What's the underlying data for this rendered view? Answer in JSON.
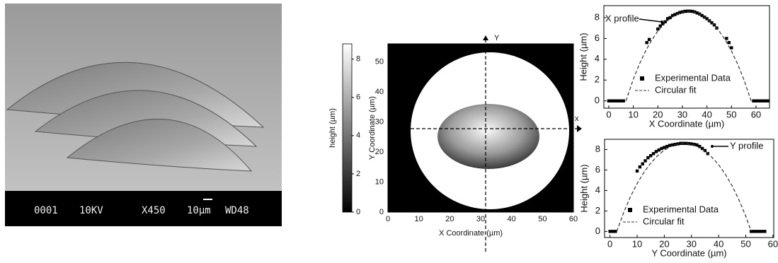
{
  "sem_image": {
    "labels": [
      "0001",
      "10KV",
      "X450",
      "10µm",
      "WD48"
    ]
  },
  "chart_data": [
    {
      "type": "image",
      "xlabel": "X Coordinate (µm)",
      "ylabel": "Y Coordinate (µm)",
      "xlim": [
        0,
        60
      ],
      "ylim": [
        0,
        56
      ],
      "xticks": [
        0,
        10,
        20,
        30,
        40,
        50,
        60
      ],
      "yticks": [
        0,
        10,
        20,
        30,
        40,
        50
      ],
      "axis_markers": [
        "Y",
        "x"
      ],
      "colorbar": {
        "label": "height (µm)",
        "lim": [
          0,
          8.8
        ],
        "ticks": [
          0,
          2,
          4,
          6,
          8
        ]
      }
    },
    {
      "type": "scatter",
      "annotation": "X profile",
      "xlabel": "X Coordinate (µm)",
      "ylabel": "Height (µm)",
      "xlim": [
        -2,
        65.5
      ],
      "ylim": [
        -0.7,
        9.15
      ],
      "xticks": [
        0,
        10,
        20,
        30,
        40,
        50,
        60
      ],
      "yticks": [
        0,
        2,
        4,
        6,
        8
      ],
      "legend": "right",
      "series": [
        {
          "name": "Experimental Data",
          "color": "#000000",
          "style": "markers",
          "x": [
            0,
            1,
            2,
            3,
            4,
            5,
            6,
            15.5,
            16.5,
            20,
            21,
            22,
            23,
            24,
            25,
            26,
            27,
            28,
            29,
            30,
            31,
            32,
            33,
            34,
            35,
            36,
            37,
            38,
            39,
            40,
            41,
            42,
            43,
            44,
            48,
            49,
            50,
            59,
            60,
            61,
            62,
            63,
            64,
            65
          ],
          "values": [
            0,
            0,
            0,
            0,
            0,
            0,
            0,
            5.6,
            5.9,
            6.9,
            7.2,
            7.4,
            7.6,
            7.9,
            8.0,
            8.2,
            8.3,
            8.4,
            8.5,
            8.55,
            8.6,
            8.62,
            8.62,
            8.6,
            8.55,
            8.45,
            8.35,
            8.2,
            8.05,
            7.9,
            7.7,
            7.5,
            7.3,
            7.0,
            6.0,
            5.6,
            5.1,
            0,
            0,
            0,
            0,
            0,
            0,
            0
          ]
        },
        {
          "name": "Circular fit",
          "color": "#333333",
          "style": "dashed",
          "x": [
            7,
            10,
            12.5,
            15,
            17.5,
            20,
            22.5,
            25,
            27.5,
            30,
            32.5,
            35,
            37.5,
            40,
            42.5,
            45,
            47.5,
            50,
            52.5,
            55,
            58
          ],
          "values": [
            0,
            2.08,
            3.55,
            4.79,
            5.84,
            6.7,
            7.4,
            7.93,
            8.3,
            8.53,
            8.6,
            8.53,
            8.3,
            7.93,
            7.4,
            6.7,
            5.84,
            4.79,
            3.55,
            2.08,
            0
          ]
        }
      ]
    },
    {
      "type": "scatter",
      "annotation": "Y profile",
      "xlabel": "Y Coordinate (µm)",
      "ylabel": "Height (µm)",
      "xlim": [
        -2,
        60.3
      ],
      "ylim": [
        -0.6,
        9.0
      ],
      "xticks": [
        0,
        10,
        20,
        30,
        40,
        50,
        60
      ],
      "yticks": [
        0,
        2,
        4,
        6,
        8
      ],
      "legend": "lower center",
      "series": [
        {
          "name": "Experimental Data",
          "color": "#000000",
          "style": "markers",
          "x": [
            0,
            1,
            2,
            10,
            11,
            12,
            13,
            14,
            15,
            16,
            17,
            18,
            19,
            20,
            21,
            22,
            23,
            24,
            25,
            26,
            27,
            28,
            29,
            30,
            31,
            32,
            33,
            34,
            35,
            36,
            52,
            53,
            54,
            55,
            56,
            57
          ],
          "values": [
            0,
            0,
            0,
            5.9,
            6.3,
            6.6,
            6.9,
            7.2,
            7.4,
            7.6,
            7.8,
            7.95,
            8.1,
            8.2,
            8.3,
            8.4,
            8.45,
            8.5,
            8.55,
            8.6,
            8.6,
            8.6,
            8.58,
            8.55,
            8.5,
            8.45,
            8.3,
            8.1,
            7.9,
            7.6,
            0,
            0,
            0,
            0,
            0,
            0
          ]
        },
        {
          "name": "Circular fit",
          "color": "#333333",
          "style": "dashed",
          "x": [
            2.5,
            5,
            7.5,
            10,
            12.5,
            15,
            17.5,
            20,
            22.5,
            25,
            27.5,
            30,
            32.5,
            35,
            37.5,
            40,
            42.5,
            45,
            47.5,
            50,
            52
          ],
          "values": [
            0,
            1.82,
            3.37,
            4.68,
            5.77,
            6.67,
            7.39,
            7.94,
            8.32,
            8.54,
            8.6,
            8.5,
            8.25,
            7.84,
            7.26,
            6.51,
            5.57,
            4.44,
            3.08,
            1.48,
            0
          ]
        }
      ]
    }
  ]
}
